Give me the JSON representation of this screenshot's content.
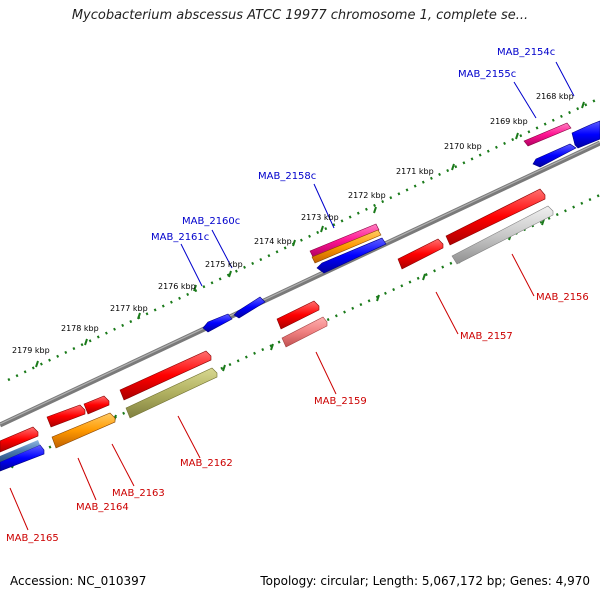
{
  "title": "Mycobacterium abscessus ATCC 19977 chromosome 1, complete se...",
  "accession": "Accession: NC_010397",
  "summary": "Topology: circular; Length: 5,067,172 bp; Genes: 4,970",
  "ruler_labels": [
    "2168 kbp",
    "2169 kbp",
    "2170 kbp",
    "2171 kbp",
    "2172 kbp",
    "2173 kbp",
    "2174 kbp",
    "2175 kbp",
    "2176 kbp",
    "2177 kbp",
    "2178 kbp",
    "2179 kbp"
  ],
  "genes_top": [
    "MAB_2154c",
    "MAB_2155c",
    "MAB_2158c",
    "MAB_2160c",
    "MAB_2161c"
  ],
  "genes_bottom": [
    "MAB_2156",
    "MAB_2157",
    "MAB_2159",
    "MAB_2162",
    "MAB_2163",
    "MAB_2164",
    "MAB_2165"
  ],
  "colors": {
    "forward_label": "#cc0000",
    "reverse_label": "#0000cc",
    "backbone": "#808080",
    "ruler_dots": "#1a7a1a",
    "red": "#ff0000",
    "blue": "#0000ff",
    "magenta": "#ff1493",
    "orange": "#ff9900",
    "olive": "#b0b060",
    "gray": "#c8c8c8",
    "pink": "#f08080",
    "steel": "#4a7ab0"
  }
}
